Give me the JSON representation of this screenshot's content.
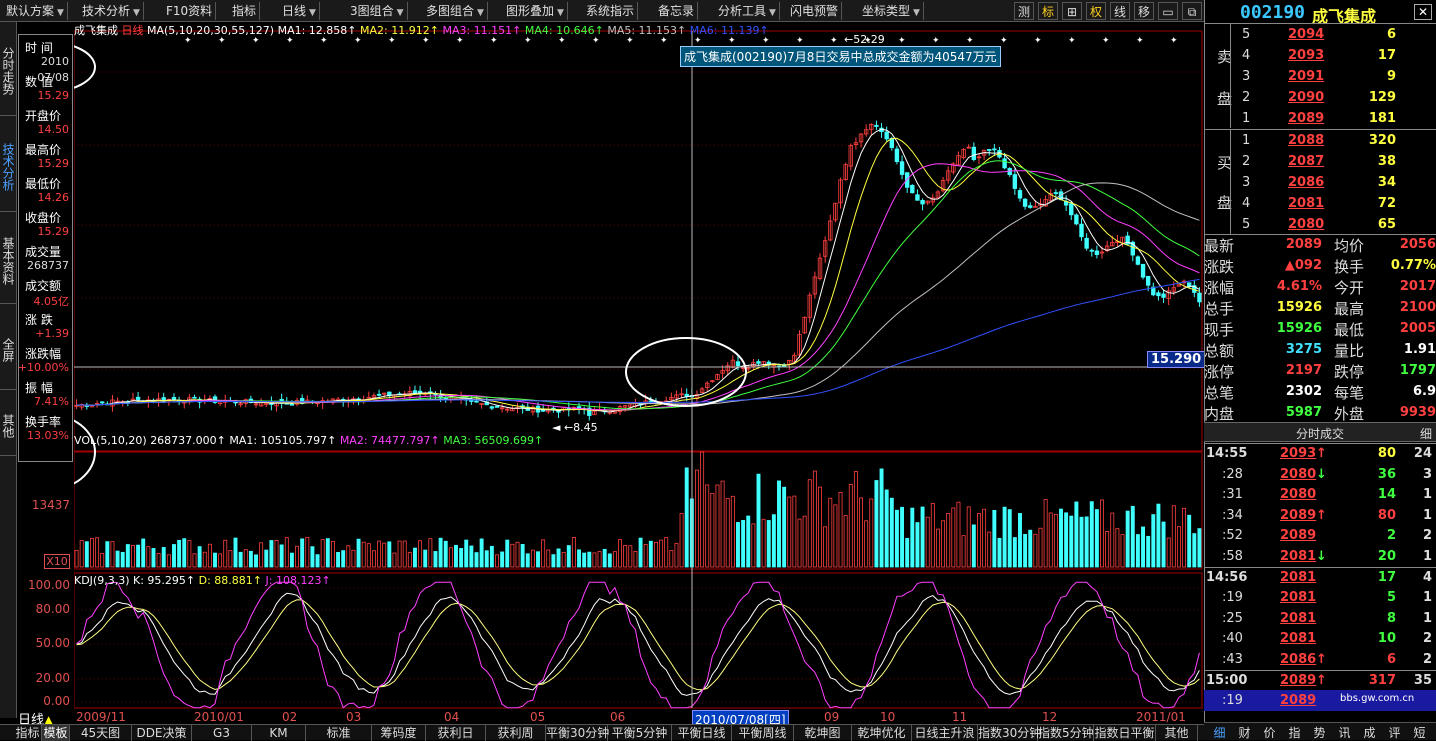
{
  "menu": {
    "items": [
      "默认方案",
      "技术分析",
      "F10资料",
      "指标",
      "日线",
      "3图组合",
      "多图组合",
      "图形叠加",
      "系统指示",
      "备忘录",
      "分析工具",
      "闪电预警",
      "坐标类型"
    ],
    "right_buttons": [
      "测",
      "标",
      "⊞",
      "权",
      "线",
      "移",
      "▭",
      "⧉"
    ]
  },
  "side_tabs": [
    "分时走势",
    "技术分析",
    "基本资料",
    "全屏",
    "其他"
  ],
  "databox": {
    "rows": [
      {
        "label": "时 间",
        "value": "2010",
        "value2": "07/08"
      },
      {
        "label": "数 值",
        "value": "15.29"
      },
      {
        "label": "开盘价",
        "value": "14.50"
      },
      {
        "label": "最高价",
        "value": "15.29"
      },
      {
        "label": "最低价",
        "value": "14.26"
      },
      {
        "label": "收盘价",
        "value": "15.29"
      },
      {
        "label": "成交量",
        "value": "268737"
      },
      {
        "label": "成交额",
        "value": "4.05亿"
      },
      {
        "label": "涨 跌",
        "value": "+1.39"
      },
      {
        "label": "涨跌幅",
        "value": "+10.00%"
      },
      {
        "label": "振 幅",
        "value": "7.41%"
      },
      {
        "label": "换手率",
        "value": "13.03%"
      }
    ]
  },
  "main_legend": {
    "name": "成飞集成",
    "period": "日线",
    "formula": "MA(5,10,20,30,55,127)",
    "ma1": "MA1: 12.858↑",
    "ma2": "MA2: 11.912↑",
    "ma3": "MA3: 11.151↑",
    "ma4": "MA4: 10.646↑",
    "ma5": "MA5: 11.153↑",
    "ma6": "MA6: 11.139↑"
  },
  "main_axis": {
    "top_label": "52.29",
    "low_label": "8.45"
  },
  "vol_legend": {
    "formula": "VOL(5,10,20)",
    "value": "268737.000↑",
    "ma1": "MA1: 105105.797↑",
    "ma2": "MA2: 74477.797↑",
    "ma3": "MA3: 56509.699↑"
  },
  "vol_axis": {
    "label": "13437",
    "mult": "X10"
  },
  "kdj_legend": {
    "formula": "KDJ(9,3,3)",
    "k": "K: 95.295↑",
    "d": "D: 88.881↑",
    "j": "J: 108.123↑"
  },
  "kdj_axis": [
    "100.00",
    "80.00",
    "50.00",
    "20.00",
    "0.00"
  ],
  "tooltip": "成飞集成(002190)7月8日交易中总成交金额为40547万元",
  "price_tag": "15.290",
  "dates": [
    "2009/11",
    "2010/01",
    "02",
    "03",
    "04",
    "05",
    "06",
    "07",
    "09",
    "10",
    "11",
    "12",
    "2011/01"
  ],
  "current_date": "2010/07/08[四]",
  "period_label": "日线",
  "bottom_tabs": [
    "指标",
    "模板",
    "45天图",
    "DDE决策",
    "G3",
    "KM",
    "标准",
    "筹码度",
    "获利日",
    "获利周",
    "平衡30分钟",
    "平衡5分钟",
    "平衡日线",
    "平衡周线",
    "乾坤图",
    "乾坤优化",
    "日线主升浪",
    "指数30分钟",
    "指数5分钟",
    "指数日平衡",
    "其他"
  ],
  "stock": {
    "code": "002190",
    "name": "成飞集成"
  },
  "orderbook": {
    "sell_label": [
      "卖",
      "盘"
    ],
    "buy_label": [
      "买",
      "盘"
    ],
    "asks": [
      {
        "lvl": "5",
        "price": "2094",
        "vol": "6"
      },
      {
        "lvl": "4",
        "price": "2093",
        "vol": "17"
      },
      {
        "lvl": "3",
        "price": "2091",
        "vol": "9"
      },
      {
        "lvl": "2",
        "price": "2090",
        "vol": "129"
      },
      {
        "lvl": "1",
        "price": "2089",
        "vol": "181"
      }
    ],
    "bids": [
      {
        "lvl": "1",
        "price": "2088",
        "vol": "320"
      },
      {
        "lvl": "2",
        "price": "2087",
        "vol": "38"
      },
      {
        "lvl": "3",
        "price": "2086",
        "vol": "34"
      },
      {
        "lvl": "4",
        "price": "2081",
        "vol": "72"
      },
      {
        "lvl": "5",
        "price": "2080",
        "vol": "65"
      }
    ]
  },
  "quote": [
    {
      "l1": "最新",
      "v1": "2089",
      "c1": "#ff4040",
      "l2": "均价",
      "v2": "2056",
      "c2": "#ff4040"
    },
    {
      "l1": "涨跌",
      "v1": "▲092",
      "c1": "#ff4040",
      "l2": "换手",
      "v2": "0.77%",
      "c2": "#ffff40"
    },
    {
      "l1": "涨幅",
      "v1": "4.61%",
      "c1": "#ff4040",
      "l2": "今开",
      "v2": "2017",
      "c2": "#ff4040"
    },
    {
      "l1": "总手",
      "v1": "15926",
      "c1": "#ffff40",
      "l2": "最高",
      "v2": "2100",
      "c2": "#ff4040"
    },
    {
      "l1": "现手",
      "v1": "15926",
      "c1": "#40ff40",
      "l2": "最低",
      "v2": "2005",
      "c2": "#ff4040"
    },
    {
      "l1": "总额",
      "v1": "3275",
      "c1": "#40e0ff",
      "l2": "量比",
      "v2": "1.91",
      "c2": "#ffffff"
    },
    {
      "l1": "涨停",
      "v1": "2197",
      "c1": "#ff4040",
      "l2": "跌停",
      "v2": "1797",
      "c2": "#40ff40"
    },
    {
      "l1": "总笔",
      "v1": "2302",
      "c1": "#ffffff",
      "l2": "每笔",
      "v2": "6.9",
      "c2": "#ffffff"
    },
    {
      "l1": "内盘",
      "v1": "5987",
      "c1": "#40ff40",
      "l2": "外盘",
      "v2": "9939",
      "c2": "#ff4040"
    }
  ],
  "trades_header": "分时成交",
  "trades_detail": "细",
  "trades": [
    {
      "time": "14:55",
      "price": "2093",
      "arrow": "↑",
      "vol": "80",
      "n": "24",
      "major": true,
      "ac": "#ff4040",
      "vc": "#ffff40"
    },
    {
      "time": ":28",
      "price": "2080",
      "arrow": "↓",
      "vol": "36",
      "n": "3",
      "major": false,
      "ac": "#40ff40",
      "vc": "#40ff40"
    },
    {
      "time": ":31",
      "price": "2080",
      "arrow": "",
      "vol": "14",
      "n": "1",
      "major": false,
      "ac": "#ff4040",
      "vc": "#40ff40"
    },
    {
      "time": ":34",
      "price": "2089",
      "arrow": "↑",
      "vol": "80",
      "n": "1",
      "major": false,
      "ac": "#ff4040",
      "vc": "#ff4040"
    },
    {
      "time": ":52",
      "price": "2089",
      "arrow": "",
      "vol": "2",
      "n": "2",
      "major": false,
      "ac": "#ff4040",
      "vc": "#40ff40"
    },
    {
      "time": ":58",
      "price": "2081",
      "arrow": "↓",
      "vol": "20",
      "n": "1",
      "major": false,
      "ac": "#40ff40",
      "vc": "#40ff40"
    },
    {
      "time": "14:56",
      "price": "2081",
      "arrow": "",
      "vol": "17",
      "n": "4",
      "major": true,
      "ac": "#ff4040",
      "vc": "#40ff40"
    },
    {
      "time": ":19",
      "price": "2081",
      "arrow": "",
      "vol": "5",
      "n": "1",
      "major": false,
      "ac": "#ff4040",
      "vc": "#40ff40"
    },
    {
      "time": ":25",
      "price": "2081",
      "arrow": "",
      "vol": "8",
      "n": "1",
      "major": false,
      "ac": "#ff4040",
      "vc": "#40ff40"
    },
    {
      "time": ":40",
      "price": "2081",
      "arrow": "",
      "vol": "10",
      "n": "2",
      "major": false,
      "ac": "#ff4040",
      "vc": "#40ff40"
    },
    {
      "time": ":43",
      "price": "2086",
      "arrow": "↑",
      "vol": "6",
      "n": "2",
      "major": false,
      "ac": "#ff4040",
      "vc": "#ff4040"
    },
    {
      "time": "15:00",
      "price": "2089",
      "arrow": "↑",
      "vol": "317",
      "n": "35",
      "major": true,
      "ac": "#ff4040",
      "vc": "#ff4040"
    },
    {
      "time": ":19",
      "price": "2089",
      "arrow": "",
      "vol": "bbs.gw.com.cn",
      "n": "",
      "major": false,
      "ac": "#ff4040",
      "vc": "#ffffff"
    }
  ],
  "right_tabs": [
    "细",
    "财",
    "价",
    "指",
    "势",
    "讯",
    "成",
    "评",
    "短"
  ],
  "colors": {
    "up": "#ff4040",
    "down": "#40ffff",
    "ma1": "#ffffff",
    "ma2": "#ffff40",
    "ma3": "#ff40ff",
    "ma4": "#40ff40",
    "ma5": "#c0c0c0",
    "ma6": "#3050ff"
  }
}
